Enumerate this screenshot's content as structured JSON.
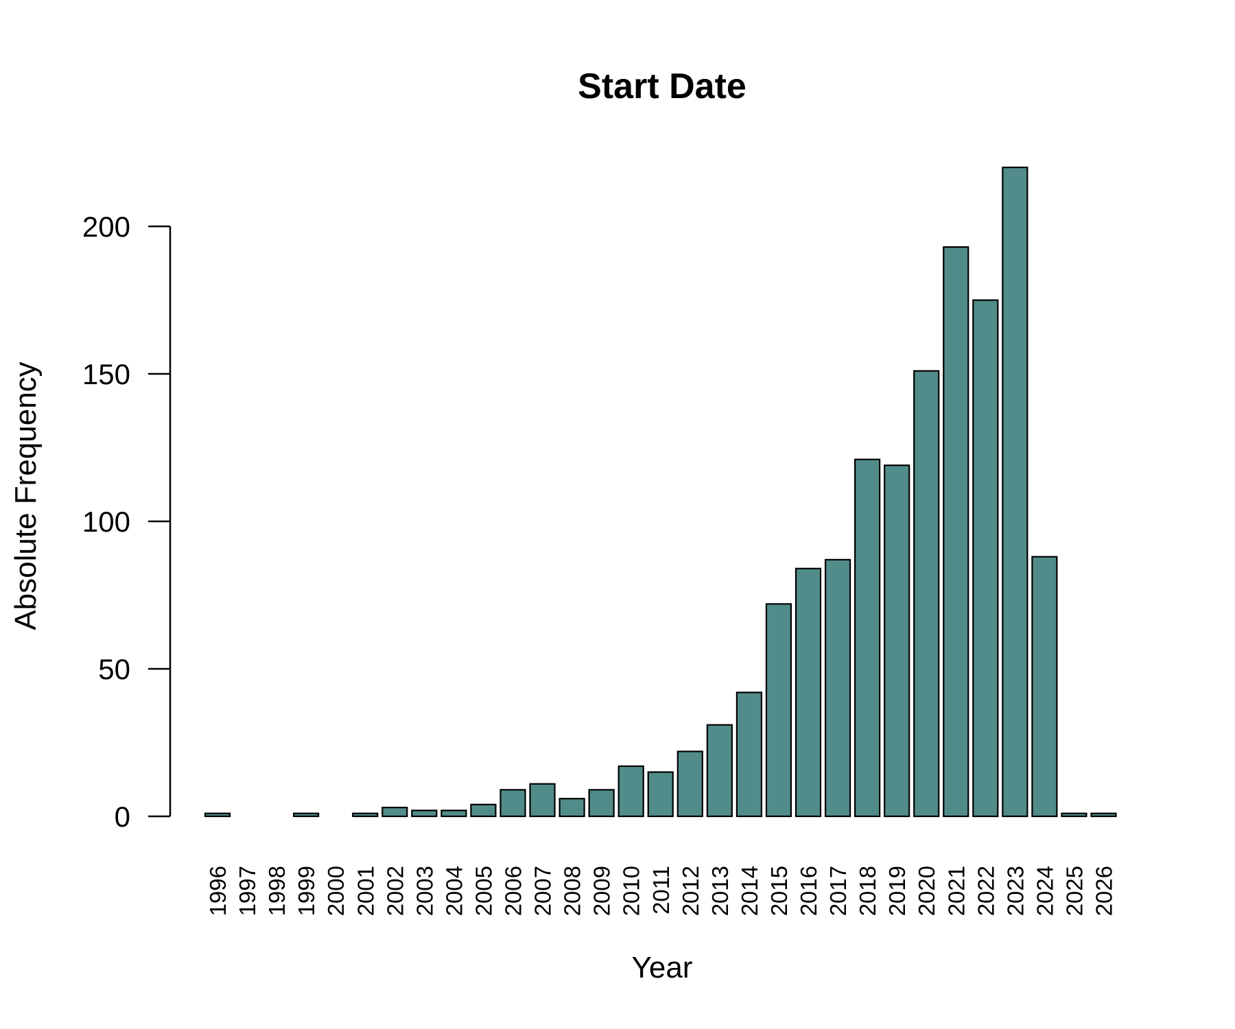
{
  "chart_data": {
    "type": "bar",
    "title": "Start Date",
    "xlabel": "Year",
    "ylabel": "Absolute Frequency",
    "categories": [
      "1996",
      "1997",
      "1998",
      "1999",
      "2000",
      "2001",
      "2002",
      "2003",
      "2004",
      "2005",
      "2006",
      "2007",
      "2008",
      "2009",
      "2010",
      "2011",
      "2012",
      "2013",
      "2014",
      "2015",
      "2016",
      "2017",
      "2018",
      "2019",
      "2020",
      "2021",
      "2022",
      "2023",
      "2024",
      "2025",
      "2026"
    ],
    "values": [
      1,
      0,
      0,
      1,
      0,
      1,
      3,
      2,
      2,
      4,
      9,
      11,
      6,
      9,
      17,
      15,
      22,
      31,
      42,
      72,
      84,
      87,
      121,
      119,
      151,
      193,
      175,
      220,
      88,
      1,
      1
    ],
    "yticks": [
      0,
      50,
      100,
      150,
      200
    ],
    "ylim": [
      0,
      220
    ],
    "grid": false,
    "bar_color": "#528C8A"
  }
}
